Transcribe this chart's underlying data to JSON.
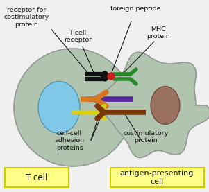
{
  "bg_color": "#f0f0f0",
  "t_cell_body_color": "#b0c4b0",
  "t_cell_body_ec": "#909890",
  "t_cell_nucleus_color": "#7fc8e8",
  "t_cell_nucleus_ec": "#5090a8",
  "apc_body_color": "#b0c4b0",
  "apc_body_ec": "#909890",
  "apc_nucleus_color": "#9a7060",
  "apc_nucleus_ec": "#6a4030",
  "label_box_color": "#ffff88",
  "label_box_ec": "#cccc00",
  "tcr_color": "#111111",
  "green_receptor_color": "#2a8a2a",
  "red_dot_color": "#cc2020",
  "orange_color": "#d87820",
  "purple_color": "#5828a0",
  "yellow_color": "#d8d010",
  "brown_color": "#7a3808",
  "line_color": "#111111",
  "text_color": "#111111",
  "labels": {
    "receptor_costim": "receptor for\ncostimulatory\nprotein",
    "t_cell_receptor": "T cell\nreceptor",
    "foreign_peptide": "foreign peptide",
    "mhc_protein": "MHC\nprotein",
    "cell_adhesion": "cell-cell\nadhesion\nproteins",
    "costim_protein": "costimulatory\nprotein",
    "t_cell": "T cell",
    "apc": "antigen-presenting\ncell"
  }
}
